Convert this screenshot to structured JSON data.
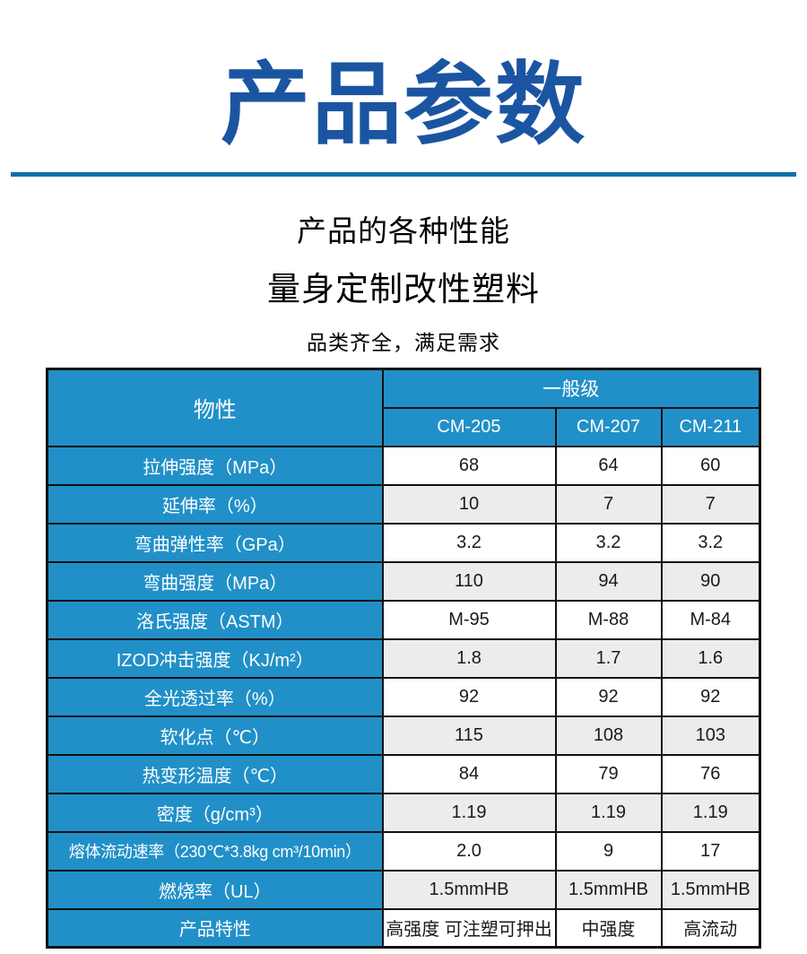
{
  "header": {
    "title": "产品参数",
    "subtitle_line1": "产品的各种性能",
    "subtitle_line2": "量身定制改性塑料",
    "subtitle_line3": "品类齐全，满足需求"
  },
  "colors": {
    "title_blue": "#1b55a2",
    "divider_blue": "#0d71a8",
    "table_header_blue": "#2190c8",
    "row_alt_gray": "#ececec",
    "border_black": "#111111"
  },
  "table": {
    "property_header": "物性",
    "grade_group_header": "一般级",
    "grade_columns": [
      "CM-205",
      "CM-207",
      "CM-211"
    ],
    "rows": [
      {
        "label": "拉伸强度（MPa）",
        "values": [
          "68",
          "64",
          "60"
        ]
      },
      {
        "label": "延伸率（%）",
        "values": [
          "10",
          "7",
          "7"
        ]
      },
      {
        "label": "弯曲弹性率（GPa）",
        "values": [
          "3.2",
          "3.2",
          "3.2"
        ]
      },
      {
        "label": "弯曲强度（MPa）",
        "values": [
          "110",
          "94",
          "90"
        ]
      },
      {
        "label": "洛氏强度（ASTM）",
        "values": [
          "M-95",
          "M-88",
          "M-84"
        ]
      },
      {
        "label": "IZOD冲击强度（KJ/m²）",
        "values": [
          "1.8",
          "1.7",
          "1.6"
        ]
      },
      {
        "label": "全光透过率（%）",
        "values": [
          "92",
          "92",
          "92"
        ]
      },
      {
        "label": "软化点（℃）",
        "values": [
          "115",
          "108",
          "103"
        ]
      },
      {
        "label": "热变形温度（℃）",
        "values": [
          "84",
          "79",
          "76"
        ]
      },
      {
        "label": "密度（g/cm³）",
        "values": [
          "1.19",
          "1.19",
          "1.19"
        ]
      },
      {
        "label": "熔体流动速率（230℃*3.8kg cm³/10min）",
        "values": [
          "2.0",
          "9",
          "17"
        ]
      },
      {
        "label": "燃烧率（UL）",
        "values": [
          "1.5mmHB",
          "1.5mmHB",
          "1.5mmHB"
        ]
      },
      {
        "label": "产品特性",
        "values": [
          "高强度 可注塑可押出",
          "中强度",
          "高流动"
        ]
      }
    ]
  }
}
